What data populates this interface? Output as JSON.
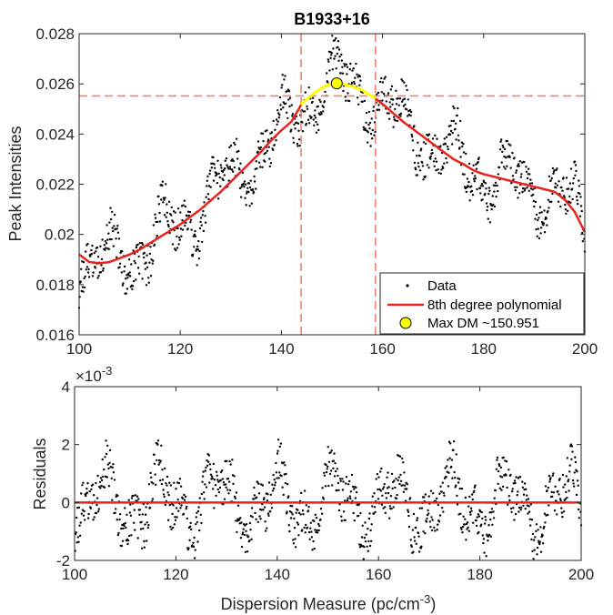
{
  "colors": {
    "data_points": "#000000",
    "fit_line": "#e8231d",
    "max_marker": "#ffff00",
    "max_arc": "#ffff00",
    "reference_lines": "#f0826e",
    "axes": "#262626"
  },
  "chart_data": [
    {
      "type": "scatter",
      "title": "B1933+16",
      "xlabel": "",
      "ylabel": "Peak Intensities",
      "xlim": [
        100,
        200
      ],
      "ylim": [
        0.016,
        0.028
      ],
      "xticks": [
        "100",
        "120",
        "140",
        "160",
        "180",
        "200"
      ],
      "yticks": [
        "0.016",
        "0.018",
        "0.02",
        "0.022",
        "0.024",
        "0.026",
        "0.028"
      ],
      "grid": false,
      "legend_position": "bottom-right",
      "legend": [
        "Data",
        "8th degree polynomial",
        "Max DM ~150.951"
      ],
      "series": [
        {
          "name": "8th degree polynomial",
          "kind": "line",
          "x": [
            100,
            102,
            104,
            106,
            108,
            110,
            112,
            114,
            116,
            118,
            120,
            122,
            124,
            126,
            128,
            130,
            132,
            134,
            136,
            138,
            140,
            142,
            144,
            146,
            148,
            150,
            151,
            152,
            154,
            156,
            158,
            160,
            162,
            164,
            166,
            168,
            170,
            172,
            174,
            176,
            178,
            180,
            182,
            184,
            186,
            188,
            190,
            192,
            194,
            196,
            198,
            200
          ],
          "y": [
            0.0192,
            0.0189,
            0.01885,
            0.0189,
            0.01905,
            0.0192,
            0.0194,
            0.01965,
            0.0199,
            0.02015,
            0.0204,
            0.0207,
            0.021,
            0.02135,
            0.0217,
            0.0221,
            0.0225,
            0.0229,
            0.0233,
            0.02375,
            0.02415,
            0.0245,
            0.0252,
            0.02555,
            0.02585,
            0.026,
            0.02602,
            0.026,
            0.0259,
            0.02575,
            0.0255,
            0.0252,
            0.02485,
            0.0245,
            0.0242,
            0.0239,
            0.0236,
            0.0233,
            0.023,
            0.0228,
            0.02255,
            0.0224,
            0.0223,
            0.0222,
            0.0221,
            0.022,
            0.0219,
            0.0218,
            0.0217,
            0.0214,
            0.0209,
            0.0201
          ]
        },
        {
          "name": "Max DM ~150.951",
          "kind": "marker",
          "x": [
            150.951
          ],
          "y": [
            0.02602
          ]
        }
      ],
      "annotations": {
        "vertical_lines_x": [
          143.9,
          158.6
        ],
        "horizontal_line_y": 0.02552,
        "highlight_range_x": [
          143.9,
          158.6
        ]
      }
    },
    {
      "type": "scatter",
      "title": "",
      "xlabel": "Dispersion Measure (pc/cm",
      "xlabel_superscript": "-3",
      "xlabel_suffix": ")",
      "ylabel": "Residuals",
      "ylim_exponent": "×10",
      "ylim_exponent_power": "-3",
      "xlim": [
        100,
        200
      ],
      "ylim": [
        -0.002,
        0.004
      ],
      "xticks": [
        "100",
        "120",
        "140",
        "160",
        "180",
        "200"
      ],
      "yticks": [
        "-2",
        "0",
        "2",
        "4"
      ],
      "grid": false,
      "series": [
        {
          "name": "",
          "kind": "line",
          "x": [
            100,
            200
          ],
          "y": [
            0,
            0
          ]
        }
      ]
    }
  ]
}
